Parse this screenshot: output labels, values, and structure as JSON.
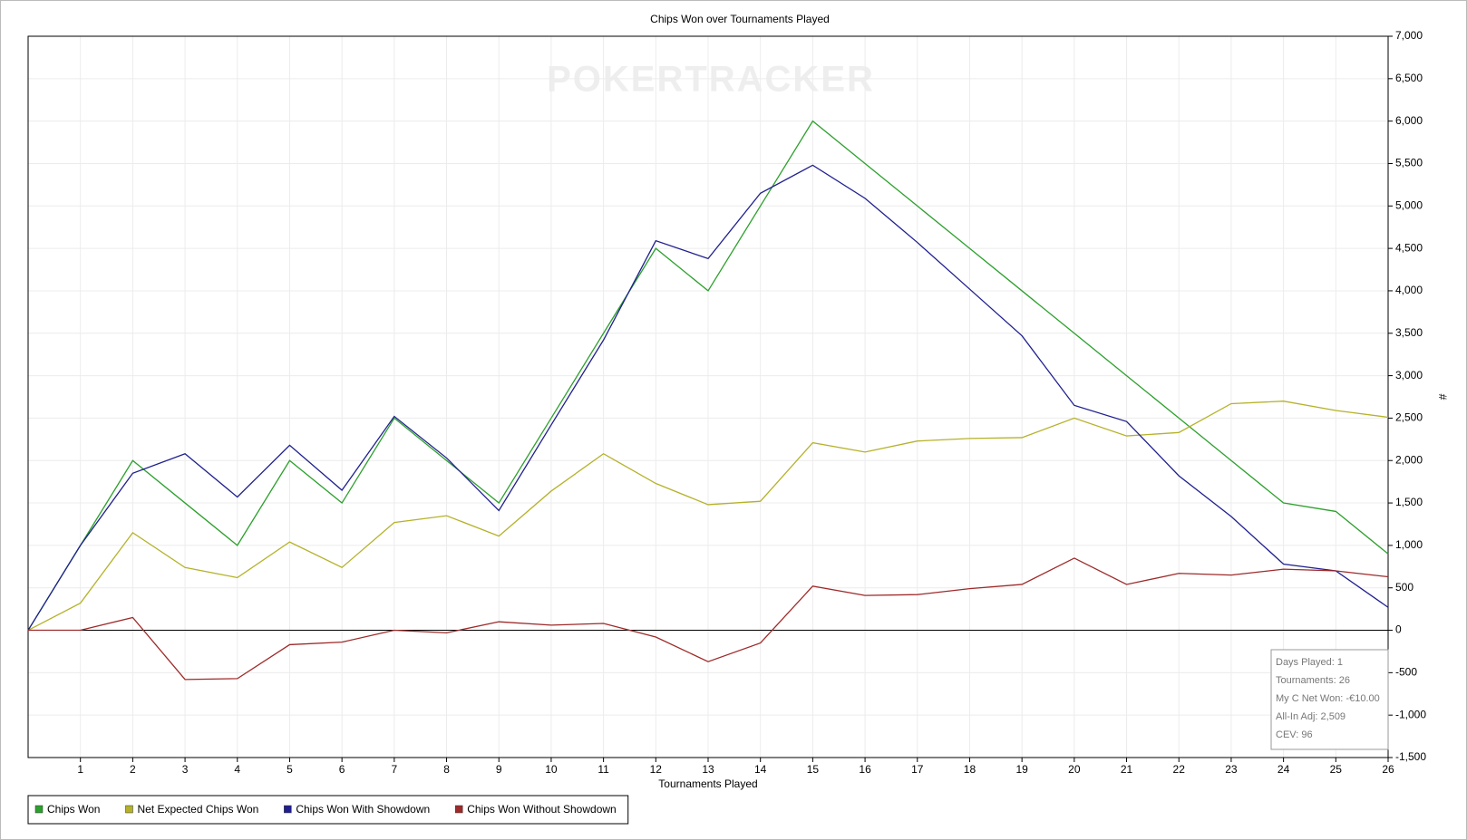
{
  "chart_data": {
    "type": "line",
    "title": "Chips Won over Tournaments Played",
    "xlabel": "Tournaments Played",
    "ylabel": "#",
    "watermark": "POKERTRACKER",
    "x": [
      0,
      1,
      2,
      3,
      4,
      5,
      6,
      7,
      8,
      9,
      10,
      11,
      12,
      13,
      14,
      15,
      16,
      17,
      18,
      19,
      20,
      21,
      22,
      23,
      24,
      25,
      26
    ],
    "xlim": [
      0,
      26
    ],
    "xticks": [
      1,
      2,
      3,
      4,
      5,
      6,
      7,
      8,
      9,
      10,
      11,
      12,
      13,
      14,
      15,
      16,
      17,
      18,
      19,
      20,
      21,
      22,
      23,
      24,
      25,
      26
    ],
    "ylim": [
      -1500,
      7000
    ],
    "yticks": [
      {
        "value": -1500,
        "label": "-1,500"
      },
      {
        "value": -1000,
        "label": "-1,000"
      },
      -500,
      0,
      500,
      {
        "value": 1000,
        "label": "1,000"
      },
      {
        "value": 1500,
        "label": "1,500"
      },
      {
        "value": 2000,
        "label": "2,000"
      },
      {
        "value": 2500,
        "label": "2,500"
      },
      {
        "value": 3000,
        "label": "3,000"
      },
      {
        "value": 3500,
        "label": "3,500"
      },
      {
        "value": 4000,
        "label": "4,000"
      },
      {
        "value": 4500,
        "label": "4,500"
      },
      {
        "value": 5000,
        "label": "5,000"
      },
      {
        "value": 5500,
        "label": "5,500"
      },
      {
        "value": 6000,
        "label": "6,000"
      },
      {
        "value": 6500,
        "label": "6,500"
      },
      {
        "value": 7000,
        "label": "7,000"
      }
    ],
    "grid": true,
    "legend": "bottom-left",
    "series": [
      {
        "name": "Chips Won",
        "color": "#2ca02c",
        "values": [
          0,
          1000,
          2000,
          1500,
          1000,
          2000,
          1500,
          2500,
          2000,
          1500,
          2500,
          3500,
          4500,
          4000,
          5000,
          6000,
          5500,
          5000,
          4500,
          4000,
          3500,
          3000,
          2500,
          2000,
          1500,
          1400,
          900
        ]
      },
      {
        "name": "Net Expected Chips Won",
        "color": "#b5b22a",
        "values": [
          0,
          320,
          1150,
          740,
          620,
          1040,
          740,
          1270,
          1350,
          1110,
          1640,
          2080,
          1730,
          1480,
          1520,
          2210,
          2100,
          2230,
          2260,
          2270,
          2500,
          2290,
          2330,
          2670,
          2700,
          2590,
          2510
        ]
      },
      {
        "name": "Chips Won With Showdown",
        "color": "#1f1f8f",
        "values": [
          0,
          1000,
          1850,
          2080,
          1570,
          2180,
          1650,
          2520,
          2030,
          1410,
          2420,
          3420,
          4590,
          4380,
          5150,
          5480,
          5090,
          4570,
          4020,
          3470,
          2650,
          2460,
          1820,
          1340,
          780,
          700,
          270
        ]
      },
      {
        "name": "Chips Won Without Showdown",
        "color": "#9e2a2a",
        "values": [
          0,
          0,
          150,
          -580,
          -570,
          -170,
          -140,
          0,
          -30,
          100,
          60,
          80,
          -80,
          -370,
          -150,
          520,
          410,
          420,
          490,
          540,
          850,
          540,
          670,
          650,
          720,
          700,
          630
        ]
      }
    ],
    "annotations": [
      "Days Played: 1",
      "Tournaments: 26",
      "My C Net Won: -€10.00",
      "All-In Adj: 2,509",
      "CEV: 96"
    ]
  }
}
